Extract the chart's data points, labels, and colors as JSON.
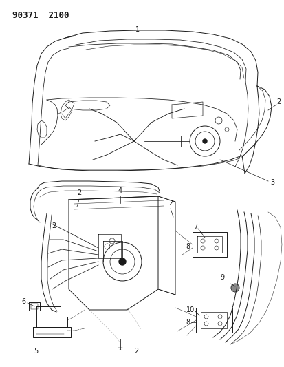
{
  "title": "90371  2100",
  "bg_color": "#ffffff",
  "line_color": "#1a1a1a",
  "title_fontsize": 9,
  "label_fontsize": 7,
  "fig_width": 4.14,
  "fig_height": 5.33,
  "dpi": 100
}
